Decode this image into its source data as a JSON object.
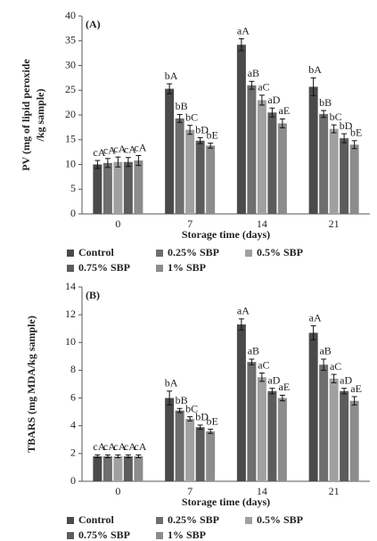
{
  "chart_data": [
    {
      "type": "bar",
      "annotation": "(A)",
      "ylabel": [
        "PV (mg of lipid peroxide",
        "/kg sample)"
      ],
      "xlabel": "Storage time (days)",
      "categories": [
        "0",
        "7",
        "14",
        "21"
      ],
      "ylim": [
        0,
        40
      ],
      "yticks": [
        0,
        5,
        10,
        15,
        20,
        25,
        30,
        35,
        40
      ],
      "series": [
        {
          "name": "Control",
          "color": "#4a4a4a",
          "values": [
            10,
            25.3,
            34.2,
            25.7
          ],
          "errors": [
            0.8,
            1,
            1.2,
            1.8
          ],
          "letters": [
            "cA",
            "bA",
            "aA",
            "bA"
          ]
        },
        {
          "name": "0.25% SBP",
          "color": "#6e6e6e",
          "values": [
            10.3,
            19.3,
            26,
            20.2
          ],
          "errors": [
            0.9,
            0.8,
            0.8,
            0.7
          ],
          "letters": [
            "cA",
            "bB",
            "aB",
            "bB"
          ]
        },
        {
          "name": "0.5% SBP",
          "color": "#a0a0a0",
          "values": [
            10.5,
            17,
            23,
            17.2
          ],
          "errors": [
            1,
            0.9,
            1,
            0.8
          ],
          "letters": [
            "cA",
            "bC",
            "aC",
            "bC"
          ]
        },
        {
          "name": "0.75% SBP",
          "color": "#5c5c5c",
          "values": [
            10.5,
            14.8,
            20.5,
            15.3
          ],
          "errors": [
            0.9,
            0.6,
            0.9,
            0.9
          ],
          "letters": [
            "cA",
            "bD",
            "aD",
            "bD"
          ]
        },
        {
          "name": "1% SBP",
          "color": "#8c8c8c",
          "values": [
            10.8,
            13.8,
            18.3,
            14
          ],
          "errors": [
            1,
            0.5,
            0.9,
            0.8
          ],
          "letters": [
            "cA",
            "bE",
            "aE",
            "bE"
          ]
        }
      ]
    },
    {
      "type": "bar",
      "annotation": "(B)",
      "ylabel": [
        "TBARS (mg MDA/kg sample)"
      ],
      "xlabel": "Storage time (days)",
      "categories": [
        "0",
        "7",
        "14",
        "21"
      ],
      "ylim": [
        0,
        14
      ],
      "yticks": [
        0,
        2,
        4,
        6,
        8,
        10,
        12,
        14
      ],
      "series": [
        {
          "name": "Control",
          "color": "#4a4a4a",
          "values": [
            1.8,
            6,
            11.3,
            10.7
          ],
          "errors": [
            0.1,
            0.5,
            0.4,
            0.5
          ],
          "letters": [
            "cA",
            "bA",
            "aA",
            "aA"
          ]
        },
        {
          "name": "0.25% SBP",
          "color": "#6e6e6e",
          "values": [
            1.8,
            5.1,
            8.6,
            8.4
          ],
          "errors": [
            0.1,
            0.15,
            0.2,
            0.4
          ],
          "letters": [
            "cA",
            "bB",
            "aB",
            "aB"
          ]
        },
        {
          "name": "0.5% SBP",
          "color": "#a0a0a0",
          "values": [
            1.8,
            4.5,
            7.5,
            7.4
          ],
          "errors": [
            0.1,
            0.15,
            0.3,
            0.3
          ],
          "letters": [
            "cA",
            "bC",
            "aC",
            "aC"
          ]
        },
        {
          "name": "0.75% SBP",
          "color": "#5c5c5c",
          "values": [
            1.8,
            3.9,
            6.5,
            6.5
          ],
          "errors": [
            0.1,
            0.15,
            0.2,
            0.2
          ],
          "letters": [
            "cA",
            "bD",
            "aD",
            "aD"
          ]
        },
        {
          "name": "1% SBP",
          "color": "#8c8c8c",
          "values": [
            1.8,
            3.6,
            6,
            5.8
          ],
          "errors": [
            0.1,
            0.15,
            0.2,
            0.3
          ],
          "letters": [
            "cA",
            "bE",
            "aE",
            "aE"
          ]
        }
      ]
    }
  ]
}
